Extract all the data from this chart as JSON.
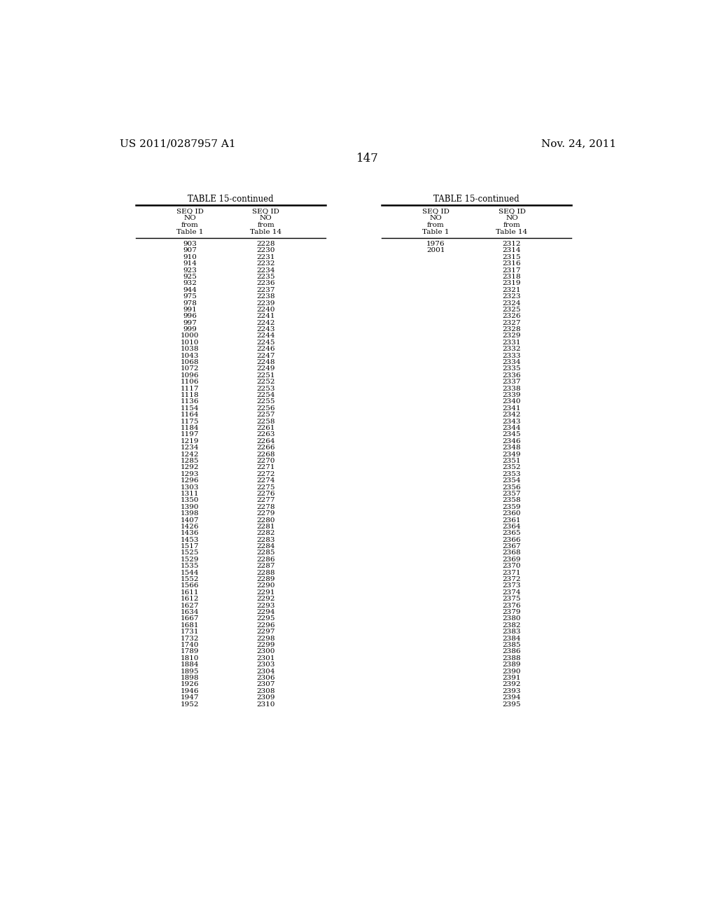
{
  "page_left": "US 2011/0287957 A1",
  "page_right": "Nov. 24, 2011",
  "page_number": "147",
  "table_title": "TABLE 15-continued",
  "left_table": {
    "col1": [
      903,
      907,
      910,
      914,
      923,
      925,
      932,
      944,
      975,
      978,
      991,
      996,
      997,
      999,
      1000,
      1010,
      1038,
      1043,
      1068,
      1072,
      1096,
      1106,
      1117,
      1118,
      1136,
      1154,
      1164,
      1175,
      1184,
      1197,
      1219,
      1234,
      1242,
      1285,
      1292,
      1293,
      1296,
      1303,
      1311,
      1350,
      1390,
      1398,
      1407,
      1426,
      1436,
      1453,
      1517,
      1525,
      1529,
      1535,
      1544,
      1552,
      1566,
      1611,
      1612,
      1627,
      1634,
      1667,
      1681,
      1731,
      1732,
      1740,
      1789,
      1810,
      1884,
      1895,
      1898,
      1926,
      1946,
      1947,
      1952
    ],
    "col2": [
      2228,
      2230,
      2231,
      2232,
      2234,
      2235,
      2236,
      2237,
      2238,
      2239,
      2240,
      2241,
      2242,
      2243,
      2244,
      2245,
      2246,
      2247,
      2248,
      2249,
      2251,
      2252,
      2253,
      2254,
      2255,
      2256,
      2257,
      2258,
      2261,
      2263,
      2264,
      2266,
      2268,
      2270,
      2271,
      2272,
      2274,
      2275,
      2276,
      2277,
      2278,
      2279,
      2280,
      2281,
      2282,
      2283,
      2284,
      2285,
      2286,
      2287,
      2288,
      2289,
      2290,
      2291,
      2292,
      2293,
      2294,
      2295,
      2296,
      2297,
      2298,
      2299,
      2300,
      2301,
      2303,
      2304,
      2306,
      2307,
      2308,
      2309,
      2310
    ]
  },
  "right_table": {
    "col1": [
      1976,
      2001
    ],
    "col2_all": [
      2312,
      2314,
      2315,
      2316,
      2317,
      2318,
      2319,
      2321,
      2323,
      2324,
      2325,
      2326,
      2327,
      2328,
      2329,
      2331,
      2332,
      2333,
      2334,
      2335,
      2336,
      2337,
      2338,
      2339,
      2340,
      2341,
      2342,
      2343,
      2344,
      2345,
      2346,
      2348,
      2349,
      2351,
      2352,
      2353,
      2354,
      2356,
      2357,
      2358,
      2359,
      2360,
      2361,
      2364,
      2365,
      2366,
      2367,
      2368,
      2369,
      2370,
      2371,
      2372,
      2373,
      2374,
      2375,
      2376,
      2379,
      2380,
      2382,
      2383,
      2384,
      2385,
      2386,
      2388,
      2389,
      2390,
      2391,
      2392,
      2393,
      2394,
      2395
    ]
  },
  "background_color": "#ffffff",
  "text_color": "#000000",
  "font_size": 7.5,
  "header_font_size": 7.5,
  "title_font_size": 8.5,
  "page_header_fontsize": 11,
  "page_number_fontsize": 12
}
